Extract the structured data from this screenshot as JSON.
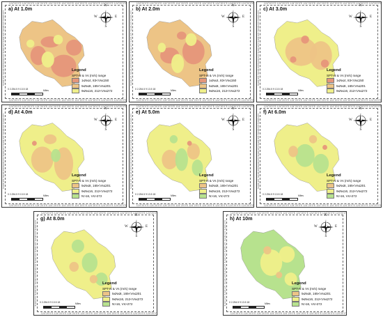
{
  "colors": {
    "very_low": "#e6967a",
    "low": "#edc486",
    "medium": "#efef8a",
    "high": "#b7e28e",
    "background": "#ffffff"
  },
  "legend_texts": {
    "title": "Legend",
    "subtitle": "SPT-N & Vs (m/s) range",
    "very_low": "1≤N≤4, 83<Vs≤150",
    "low": "5≤N≤8, 165<Vs≤201",
    "medium": "9≤N≤16, 212<Vs≤272",
    "high": "N>16, Vs>272"
  },
  "scale": {
    "numbers": "0 2.254.5    9     13.5    18",
    "unit": "Miles"
  },
  "compass": {
    "n": "N",
    "s": "S",
    "e": "E",
    "w": "W"
  },
  "tick_text": "124°20'0\"E  124°20'0\"E  124°20'0\"E  124°20'0\"E  124°20'0\"E",
  "panels": [
    {
      "title": "a) At 1.0m",
      "legend": [
        "very_low",
        "low",
        "medium"
      ],
      "base": "low",
      "blobs": [
        [
          "very_low",
          0.62,
          0.68,
          0.16,
          0.14
        ],
        [
          "very_low",
          0.3,
          0.55,
          0.1,
          0.12
        ],
        [
          "very_low",
          0.75,
          0.45,
          0.1,
          0.1
        ],
        [
          "very_low",
          0.45,
          0.38,
          0.12,
          0.07
        ],
        [
          "medium",
          0.42,
          0.6,
          0.08,
          0.1
        ],
        [
          "medium",
          0.55,
          0.35,
          0.06,
          0.06
        ],
        [
          "medium",
          0.2,
          0.4,
          0.05,
          0.05
        ]
      ]
    },
    {
      "title": "b) At 2.0m",
      "legend": [
        "very_low",
        "low",
        "medium"
      ],
      "base": "low",
      "blobs": [
        [
          "very_low",
          0.35,
          0.55,
          0.12,
          0.1
        ],
        [
          "very_low",
          0.65,
          0.5,
          0.14,
          0.16
        ],
        [
          "very_low",
          0.5,
          0.3,
          0.06,
          0.05
        ],
        [
          "medium",
          0.45,
          0.65,
          0.08,
          0.12
        ],
        [
          "medium",
          0.62,
          0.35,
          0.07,
          0.08
        ],
        [
          "medium",
          0.25,
          0.45,
          0.05,
          0.06
        ]
      ]
    },
    {
      "title": "c) At 3.0m",
      "legend": [
        "very_low",
        "low",
        "medium"
      ],
      "base": "medium",
      "blobs": [
        [
          "low",
          0.4,
          0.5,
          0.2,
          0.18
        ],
        [
          "low",
          0.65,
          0.55,
          0.14,
          0.18
        ],
        [
          "very_low",
          0.45,
          0.35,
          0.05,
          0.05
        ],
        [
          "very_low",
          0.7,
          0.65,
          0.05,
          0.05
        ],
        [
          "very_low",
          0.3,
          0.6,
          0.04,
          0.04
        ]
      ]
    },
    {
      "title": "d) At 4.0m",
      "legend": [
        "low",
        "medium",
        "high"
      ],
      "base": "medium",
      "blobs": [
        [
          "low",
          0.35,
          0.55,
          0.14,
          0.16
        ],
        [
          "low",
          0.62,
          0.6,
          0.12,
          0.2
        ],
        [
          "low",
          0.45,
          0.3,
          0.08,
          0.06
        ],
        [
          "high",
          0.52,
          0.5,
          0.06,
          0.08
        ],
        [
          "very_low",
          0.25,
          0.35,
          0.03,
          0.03
        ]
      ]
    },
    {
      "title": "e) At 5.0m",
      "legend": [
        "low",
        "medium",
        "high"
      ],
      "base": "medium",
      "blobs": [
        [
          "low",
          0.35,
          0.55,
          0.1,
          0.12
        ],
        [
          "low",
          0.65,
          0.45,
          0.08,
          0.1
        ],
        [
          "high",
          0.5,
          0.55,
          0.08,
          0.14
        ],
        [
          "high",
          0.7,
          0.65,
          0.07,
          0.1
        ],
        [
          "high",
          0.4,
          0.3,
          0.05,
          0.05
        ],
        [
          "very_low",
          0.6,
          0.35,
          0.03,
          0.03
        ]
      ]
    },
    {
      "title": "f) At 6.0m",
      "legend": [
        "low",
        "medium",
        "high"
      ],
      "base": "medium",
      "blobs": [
        [
          "high",
          0.45,
          0.5,
          0.12,
          0.14
        ],
        [
          "high",
          0.65,
          0.6,
          0.1,
          0.12
        ],
        [
          "low",
          0.3,
          0.45,
          0.06,
          0.07
        ],
        [
          "low",
          0.55,
          0.3,
          0.05,
          0.05
        ],
        [
          "very_low",
          0.7,
          0.4,
          0.03,
          0.03
        ]
      ]
    },
    {
      "title": "g) At 8.0m",
      "legend": [
        "low",
        "medium",
        "high"
      ],
      "base": "medium",
      "blobs": [
        [
          "high",
          0.4,
          0.3,
          0.08,
          0.08
        ],
        [
          "high",
          0.55,
          0.5,
          0.1,
          0.12
        ],
        [
          "high",
          0.7,
          0.7,
          0.08,
          0.08
        ],
        [
          "low",
          0.35,
          0.55,
          0.06,
          0.06
        ],
        [
          "low",
          0.6,
          0.7,
          0.05,
          0.05
        ]
      ]
    },
    {
      "title": "h) At 10m",
      "legend": [
        "low",
        "medium",
        "high"
      ],
      "base": "high",
      "blobs": [
        [
          "medium",
          0.45,
          0.5,
          0.14,
          0.16
        ],
        [
          "medium",
          0.65,
          0.4,
          0.1,
          0.1
        ],
        [
          "medium",
          0.7,
          0.7,
          0.08,
          0.08
        ],
        [
          "low",
          0.4,
          0.35,
          0.05,
          0.05
        ],
        [
          "low",
          0.55,
          0.65,
          0.04,
          0.04
        ]
      ]
    }
  ]
}
